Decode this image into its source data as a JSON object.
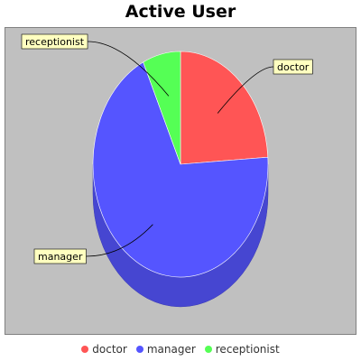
{
  "chart_data": {
    "type": "pie",
    "title": "Active User",
    "slices": [
      {
        "label": "doctor",
        "value": 24,
        "color": "#ff5555"
      },
      {
        "label": "manager",
        "value": 69,
        "color": "#5555ff"
      },
      {
        "label": "receptionist",
        "value": 7,
        "color": "#55ff55"
      }
    ],
    "legend_position": "bottom",
    "style": "3d"
  }
}
